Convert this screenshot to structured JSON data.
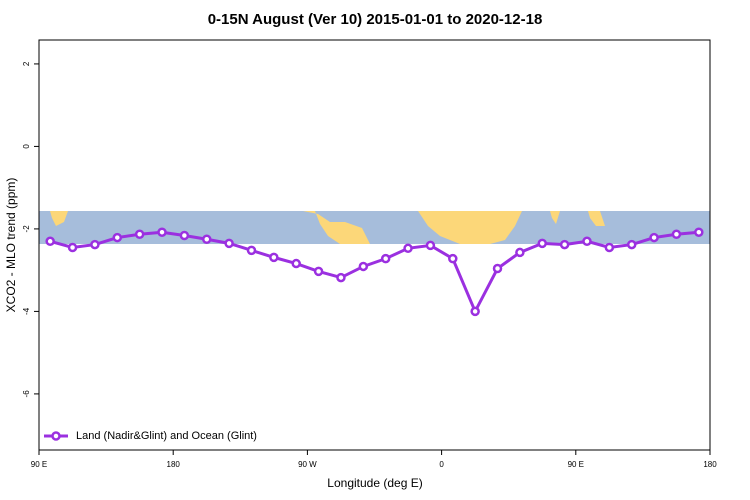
{
  "chart_data": {
    "type": "line",
    "title": "0-15N August (Ver 10)   2015-01-01 to 2020-12-18",
    "x_label": "Longitude (deg E)",
    "y_label": "XCO2 - MLO trend (ppm)",
    "x": [
      97.5,
      112.5,
      127.5,
      142.5,
      157.5,
      172.5,
      187.5,
      202.5,
      217.5,
      232.5,
      247.5,
      262.5,
      277.5,
      292.5,
      307.5,
      322.5,
      337.5,
      352.5,
      367.5,
      382.5,
      397.5,
      412.5,
      427.5,
      442.5,
      457.5,
      472.5,
      487.5,
      502.5,
      517.5,
      532.5
    ],
    "series": [
      {
        "name": "Land (Nadir&Glint) and Ocean (Glint)",
        "color": "#9b30e0",
        "values": [
          -2.3,
          -2.45,
          -2.38,
          -2.21,
          -2.13,
          -2.08,
          -2.16,
          -2.25,
          -2.35,
          -2.52,
          -2.69,
          -2.84,
          -3.03,
          -3.18,
          -2.91,
          -2.72,
          -2.47,
          -2.4,
          -2.72,
          -4.0,
          -2.96,
          -2.57,
          -2.35,
          -2.38,
          -2.3,
          -2.45,
          -2.38,
          -2.21,
          -2.13,
          -2.08
        ]
      }
    ],
    "xlim": [
      90,
      540
    ],
    "xticks": [
      {
        "value": 90,
        "label": "90 E"
      },
      180,
      {
        "value": 270,
        "label": "90 W"
      },
      {
        "value": 360,
        "label": "0"
      },
      {
        "value": 450,
        "label": "90 E"
      },
      {
        "value": 540,
        "label": "180"
      }
    ],
    "ylim": [
      -7.36,
      2.58
    ],
    "yticks": [
      -6,
      -4,
      -2,
      0,
      2
    ],
    "legend": "lower left"
  }
}
